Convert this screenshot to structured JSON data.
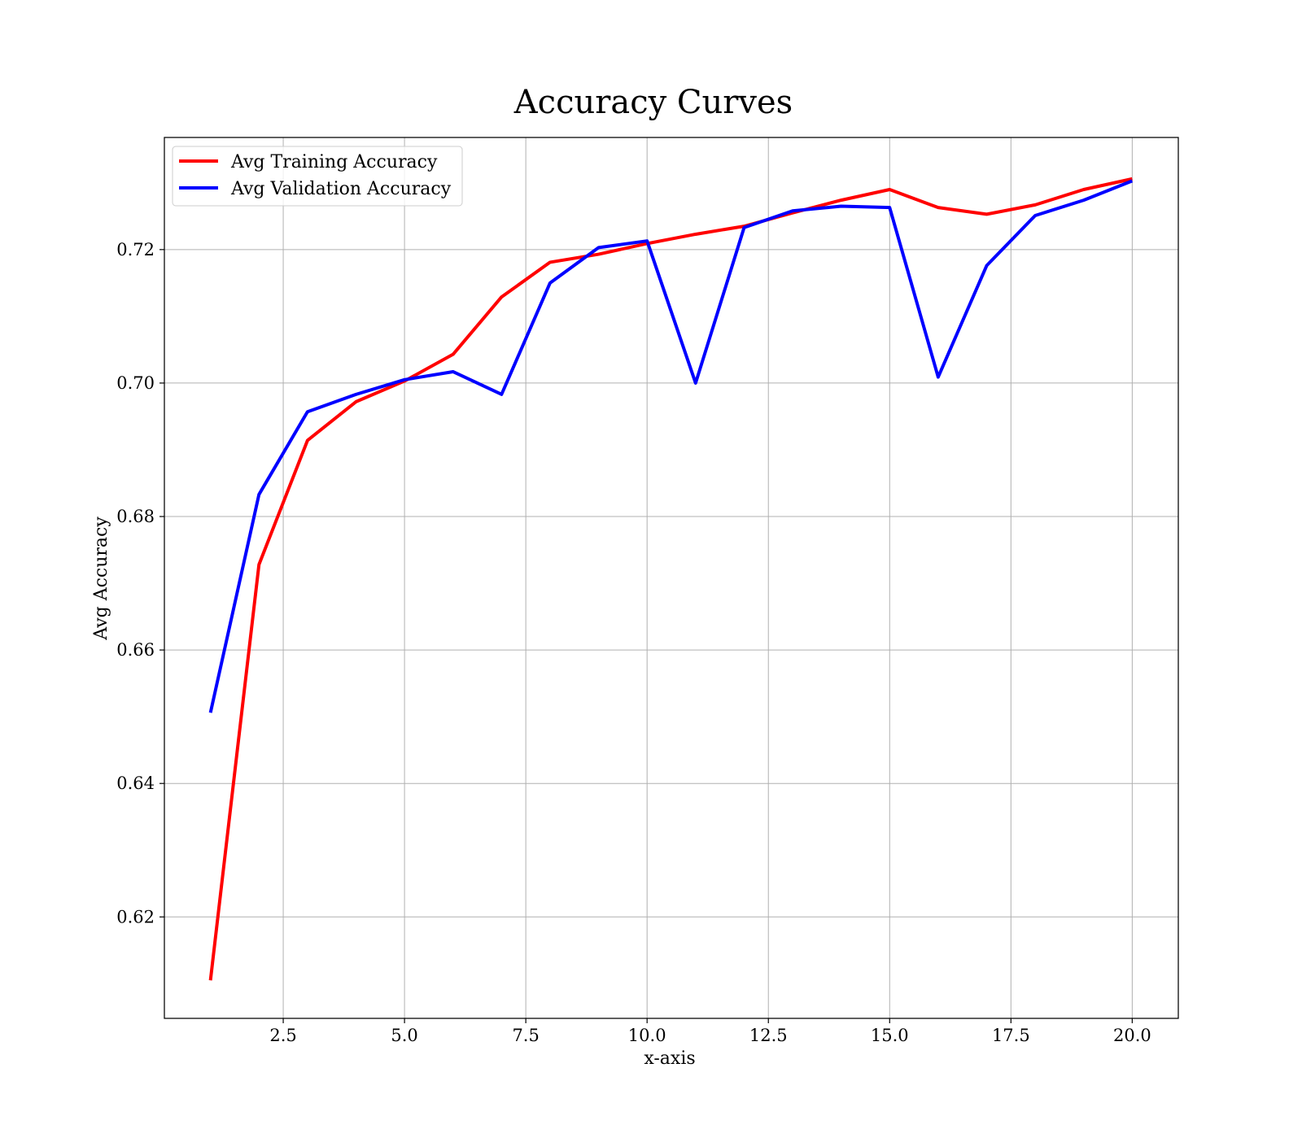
{
  "chart_data": {
    "type": "line",
    "title": "Accuracy Curves",
    "xlabel": "x-axis",
    "ylabel": "Avg Accuracy",
    "x": [
      1,
      2,
      3,
      4,
      5,
      6,
      7,
      8,
      9,
      10,
      11,
      12,
      13,
      14,
      15,
      16,
      17,
      18,
      19,
      20
    ],
    "series": [
      {
        "name": "Avg Training Accuracy",
        "color": "#ff0000",
        "values": [
          0.6105,
          0.6728,
          0.6914,
          0.6972,
          0.7003,
          0.7043,
          0.7129,
          0.7181,
          0.7193,
          0.7209,
          0.7223,
          0.7235,
          0.7255,
          0.7274,
          0.729,
          0.7263,
          0.7253,
          0.7267,
          0.729,
          0.7306
        ]
      },
      {
        "name": "Avg Validation Accuracy",
        "color": "#0000ff",
        "values": [
          0.6506,
          0.6833,
          0.6957,
          0.6983,
          0.7005,
          0.7017,
          0.6983,
          0.715,
          0.7203,
          0.7213,
          0.7,
          0.7233,
          0.7258,
          0.7265,
          0.7263,
          0.7009,
          0.7176,
          0.7251,
          0.7274,
          0.7303
        ]
      }
    ],
    "xlim": [
      0.05,
      20.95
    ],
    "ylim": [
      0.6048,
      0.7368
    ],
    "xticks": [
      2.5,
      5.0,
      7.5,
      10.0,
      12.5,
      15.0,
      17.5,
      20.0
    ],
    "xtick_labels": [
      "2.5",
      "5.0",
      "7.5",
      "10.0",
      "12.5",
      "15.0",
      "17.5",
      "20.0"
    ],
    "yticks": [
      0.62,
      0.64,
      0.66,
      0.68,
      0.7,
      0.72
    ],
    "ytick_labels": [
      "0.62",
      "0.64",
      "0.66",
      "0.68",
      "0.70",
      "0.72"
    ],
    "grid": true,
    "legend_position": "top-left",
    "colors": {
      "grid": "#b0b0b0",
      "axes": "#000000",
      "legend_border": "#cccccc"
    }
  }
}
